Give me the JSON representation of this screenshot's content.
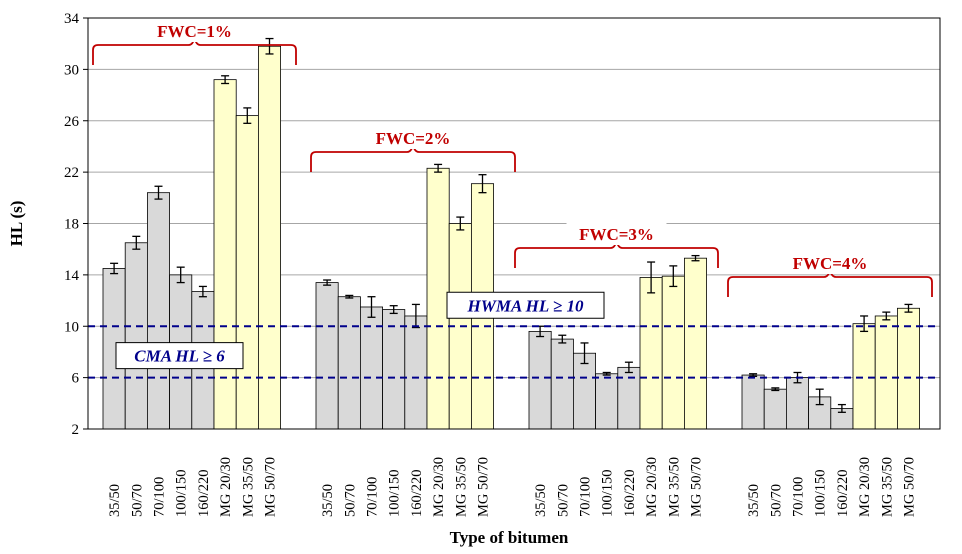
{
  "chart_data": {
    "type": "bar",
    "xlabel": "Type of bitumen",
    "ylabel": "HL (s)",
    "ylim": [
      2,
      34
    ],
    "yticks": [
      2,
      6,
      10,
      14,
      18,
      22,
      26,
      30,
      34
    ],
    "grid": "horizontal",
    "groups": [
      {
        "label": "FWC=1%",
        "categories": [
          "35/50",
          "50/70",
          "70/100",
          "100/150",
          "160/220",
          "MG 20/30",
          "MG 35/50",
          "MG 50/70"
        ],
        "values": [
          14.5,
          16.5,
          20.4,
          14.0,
          12.7,
          29.2,
          26.4,
          31.8
        ],
        "errors": [
          0.4,
          0.5,
          0.5,
          0.6,
          0.4,
          0.3,
          0.6,
          0.6
        ]
      },
      {
        "label": "FWC=2%",
        "categories": [
          "35/50",
          "50/70",
          "70/100",
          "100/150",
          "160/220",
          "MG 20/30",
          "MG 35/50",
          "MG 50/70"
        ],
        "values": [
          13.4,
          12.3,
          11.5,
          11.3,
          10.8,
          22.3,
          18.0,
          21.1
        ],
        "errors": [
          0.2,
          0.1,
          0.8,
          0.3,
          0.9,
          0.3,
          0.5,
          0.7
        ]
      },
      {
        "label": "FWC=3%",
        "categories": [
          "35/50",
          "50/70",
          "70/100",
          "100/150",
          "160/220",
          "MG 20/30",
          "MG 35/50",
          "MG 50/70"
        ],
        "values": [
          9.6,
          9.0,
          7.9,
          6.3,
          6.8,
          13.8,
          13.9,
          15.3
        ],
        "errors": [
          0.4,
          0.3,
          0.8,
          0.1,
          0.4,
          1.2,
          0.8,
          0.2
        ]
      },
      {
        "label": "FWC=4%",
        "categories": [
          "35/50",
          "50/70",
          "70/100",
          "100/150",
          "160/220",
          "MG 20/30",
          "MG 35/50",
          "MG 50/70"
        ],
        "values": [
          6.2,
          5.1,
          6.0,
          4.5,
          3.6,
          10.2,
          10.8,
          11.4
        ],
        "errors": [
          0.1,
          0.1,
          0.4,
          0.6,
          0.3,
          0.6,
          0.3,
          0.3
        ]
      }
    ],
    "reference_lines": [
      {
        "value": 10,
        "label": "HWMA HL ≥ 10"
      },
      {
        "value": 6,
        "label": "CMA HL ≥ 6"
      }
    ]
  },
  "colors": {
    "conventional_fill": "#d9d9d9",
    "modified_fill": "#ffffcc",
    "bar_stroke": "#000000",
    "grid": "#a6a6a6",
    "reference_line": "#00008b",
    "brace": "#c00000",
    "group_label": "#c00000",
    "reference_label": "#00008b"
  }
}
